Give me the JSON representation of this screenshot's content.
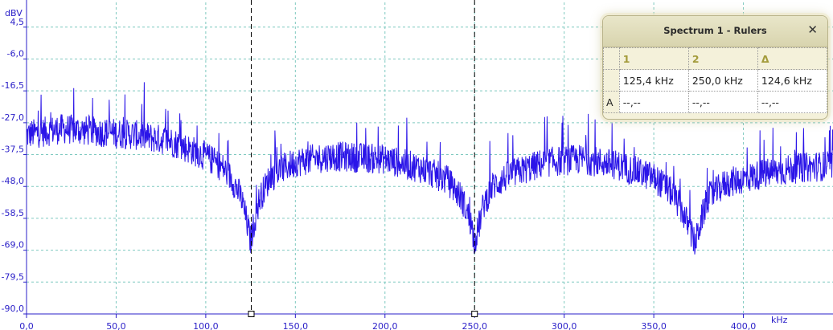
{
  "chart_data": {
    "type": "line",
    "title": "",
    "xlabel": "kHz",
    "ylabel": "dBV",
    "xlim": [
      0,
      450
    ],
    "ylim": [
      -90,
      10
    ],
    "x_ticks": [
      "0,0",
      "50,0",
      "100,0",
      "150,0",
      "200,0",
      "250,0",
      "300,0",
      "350,0",
      "400,0"
    ],
    "y_ticks": [
      "4,5",
      "-6,0",
      "-16,5",
      "-27,0",
      "-37,5",
      "-48,0",
      "-58,5",
      "-69,0",
      "-79,5",
      "-90,0"
    ],
    "grid": true,
    "series": [
      {
        "color": "#2a14e8",
        "x": [
          0,
          20,
          40,
          60,
          80,
          100,
          110,
          115,
          120,
          123,
          125,
          127,
          130,
          135,
          140,
          150,
          170,
          200,
          220,
          235,
          243,
          248,
          250,
          252,
          255,
          260,
          270,
          290,
          310,
          330,
          350,
          360,
          365,
          370,
          373,
          376,
          380,
          390,
          410,
          430,
          450
        ],
        "y": [
          -31,
          -29,
          -30,
          -31,
          -33,
          -38,
          -42,
          -46,
          -52,
          -60,
          -66,
          -60,
          -52,
          -46,
          -43,
          -40,
          -38,
          -39,
          -42,
          -46,
          -52,
          -60,
          -66,
          -62,
          -54,
          -48,
          -44,
          -40,
          -39,
          -41,
          -45,
          -50,
          -55,
          -62,
          -67,
          -60,
          -52,
          -47,
          -44,
          -42,
          -41
        ]
      }
    ],
    "rulers": [
      125.4,
      250.0
    ]
  },
  "rulers_panel": {
    "title": "Spectrum 1 - Rulers",
    "close_glyph": "✕",
    "headers": [
      "1",
      "2",
      "Δ"
    ],
    "values": [
      "125,4 kHz",
      "250,0 kHz",
      "124,6 kHz"
    ],
    "row_label": "A",
    "row_values": [
      "--,--",
      "--,--",
      "--,--"
    ]
  },
  "colors": {
    "trace": "#2a14e8",
    "axis": "#2a1fc8",
    "grid": "#7fc9c0",
    "panel": "#f4f1da"
  }
}
